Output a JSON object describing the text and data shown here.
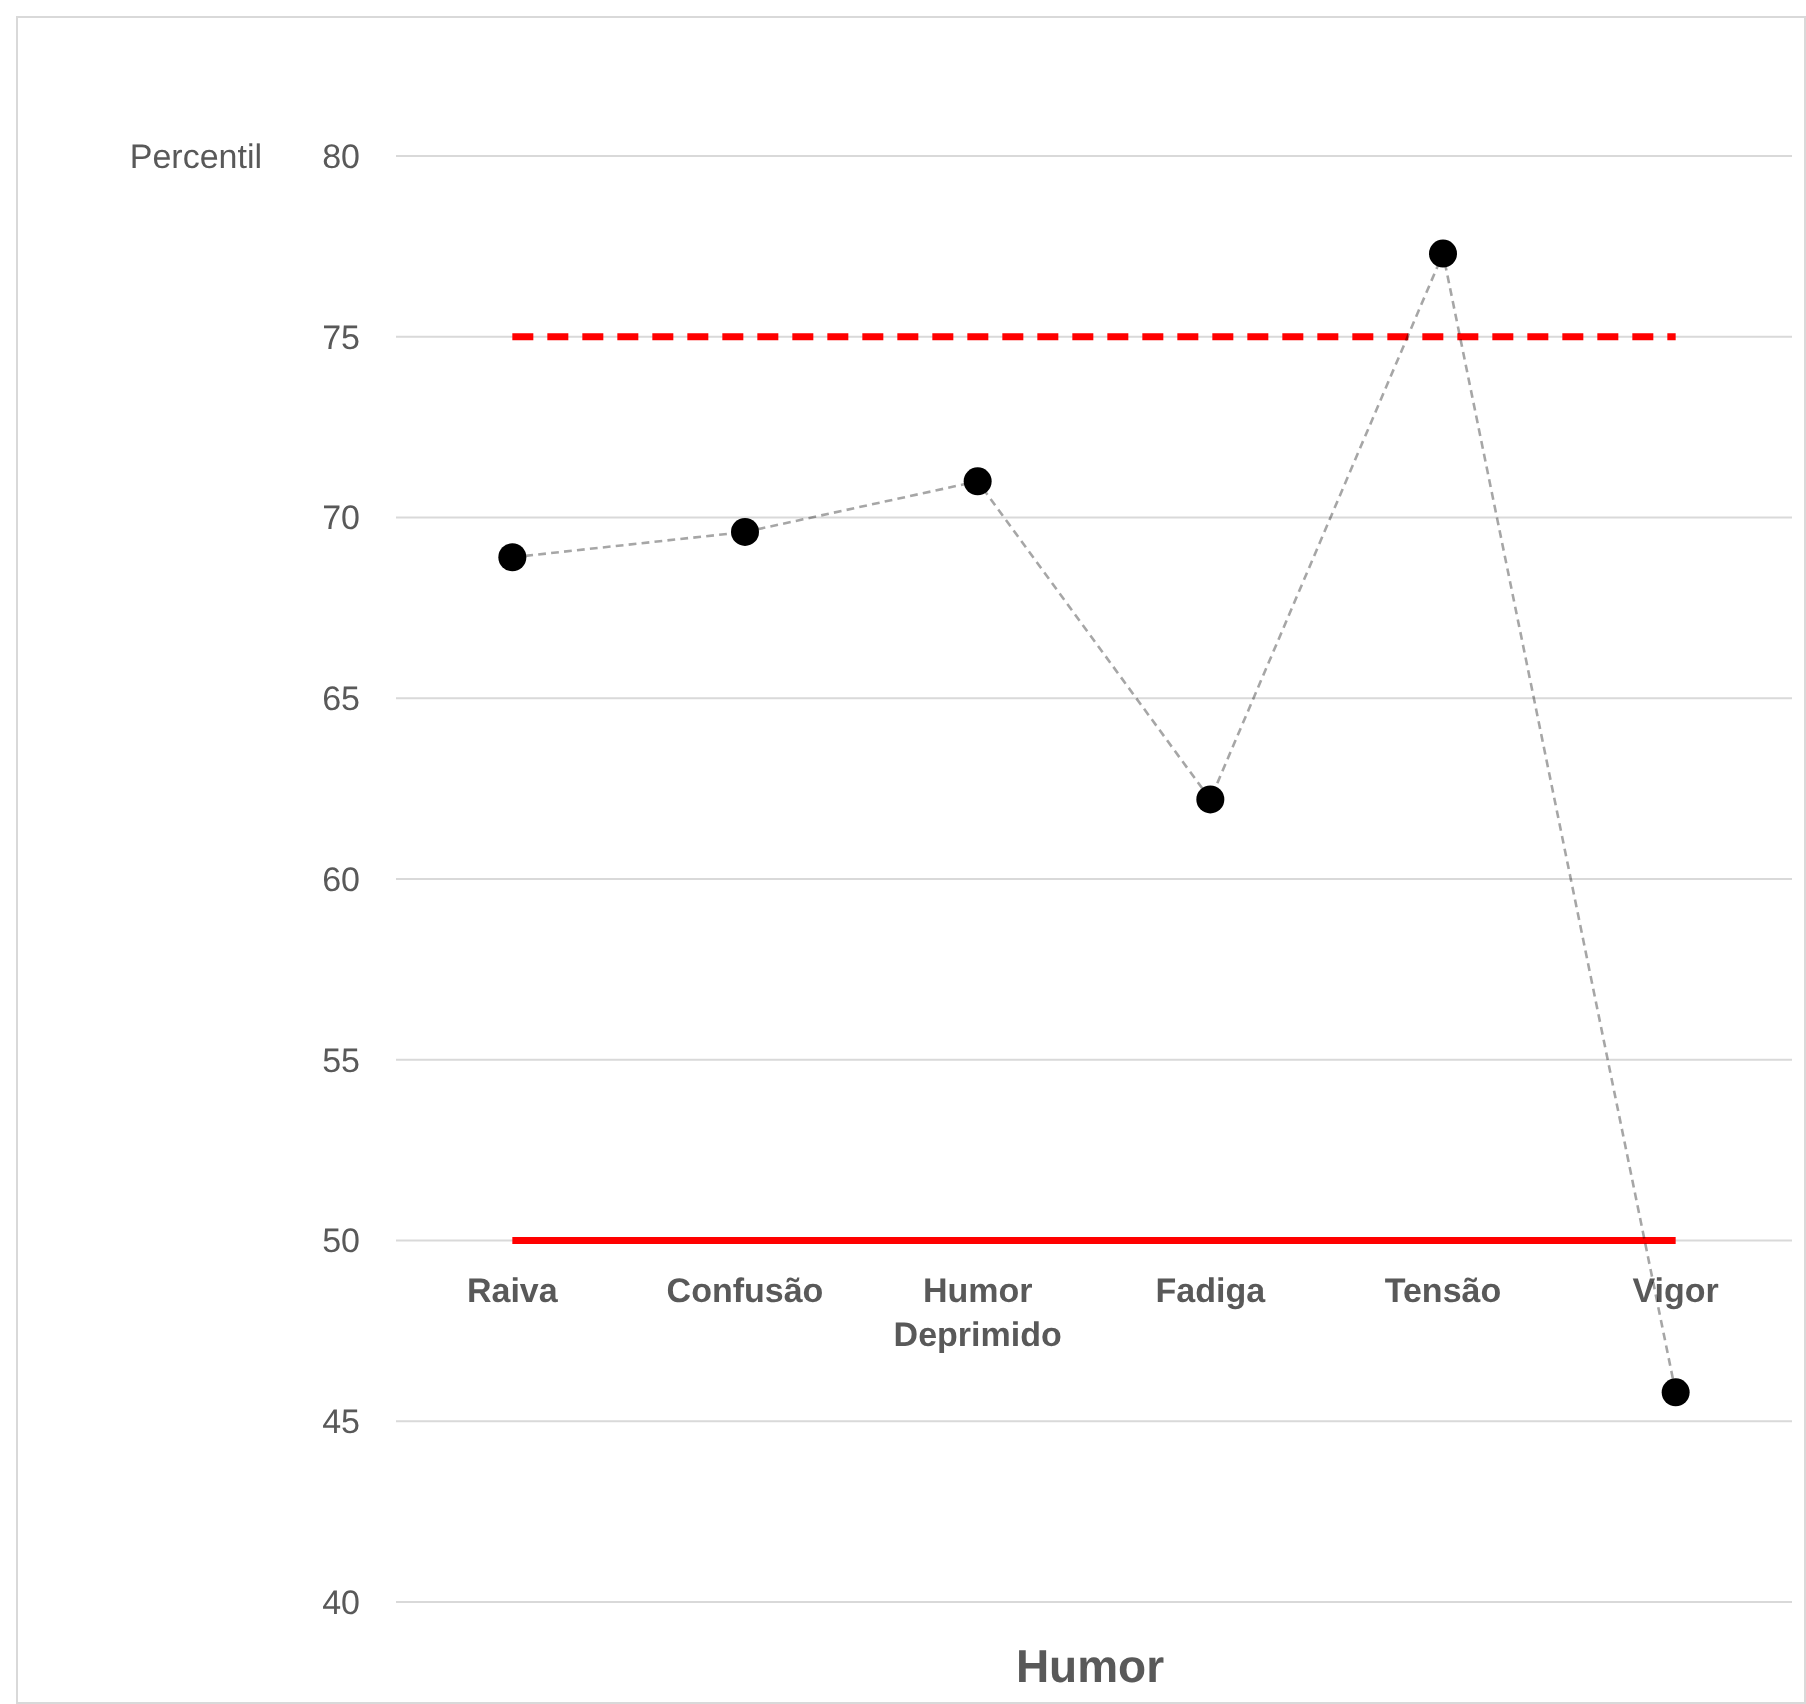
{
  "chart_data": {
    "type": "line",
    "xlabel": "Humor",
    "ylabel": "Percentil",
    "categories": [
      "Raiva",
      "Confusão",
      "Humor Deprimido",
      "Fadiga",
      "Tensão",
      "Vigor"
    ],
    "series": [
      {
        "color": "#000000",
        "values": [
          68.9,
          69.6,
          71.0,
          62.2,
          77.3,
          45.8
        ],
        "marker": "circle",
        "line_style": "dashed"
      },
      {
        "color": "#ff0000",
        "values": [
          75,
          75,
          75,
          75,
          75,
          75
        ],
        "marker": "none",
        "line_style": "dashed"
      },
      {
        "color": "#ff0000",
        "values": [
          50,
          50,
          50,
          50,
          50,
          50
        ],
        "marker": "none",
        "line_style": "solid"
      }
    ],
    "ylim": [
      40,
      80
    ],
    "yticks": [
      40,
      45,
      50,
      55,
      60,
      65,
      70,
      75,
      80
    ],
    "grid": "y"
  }
}
